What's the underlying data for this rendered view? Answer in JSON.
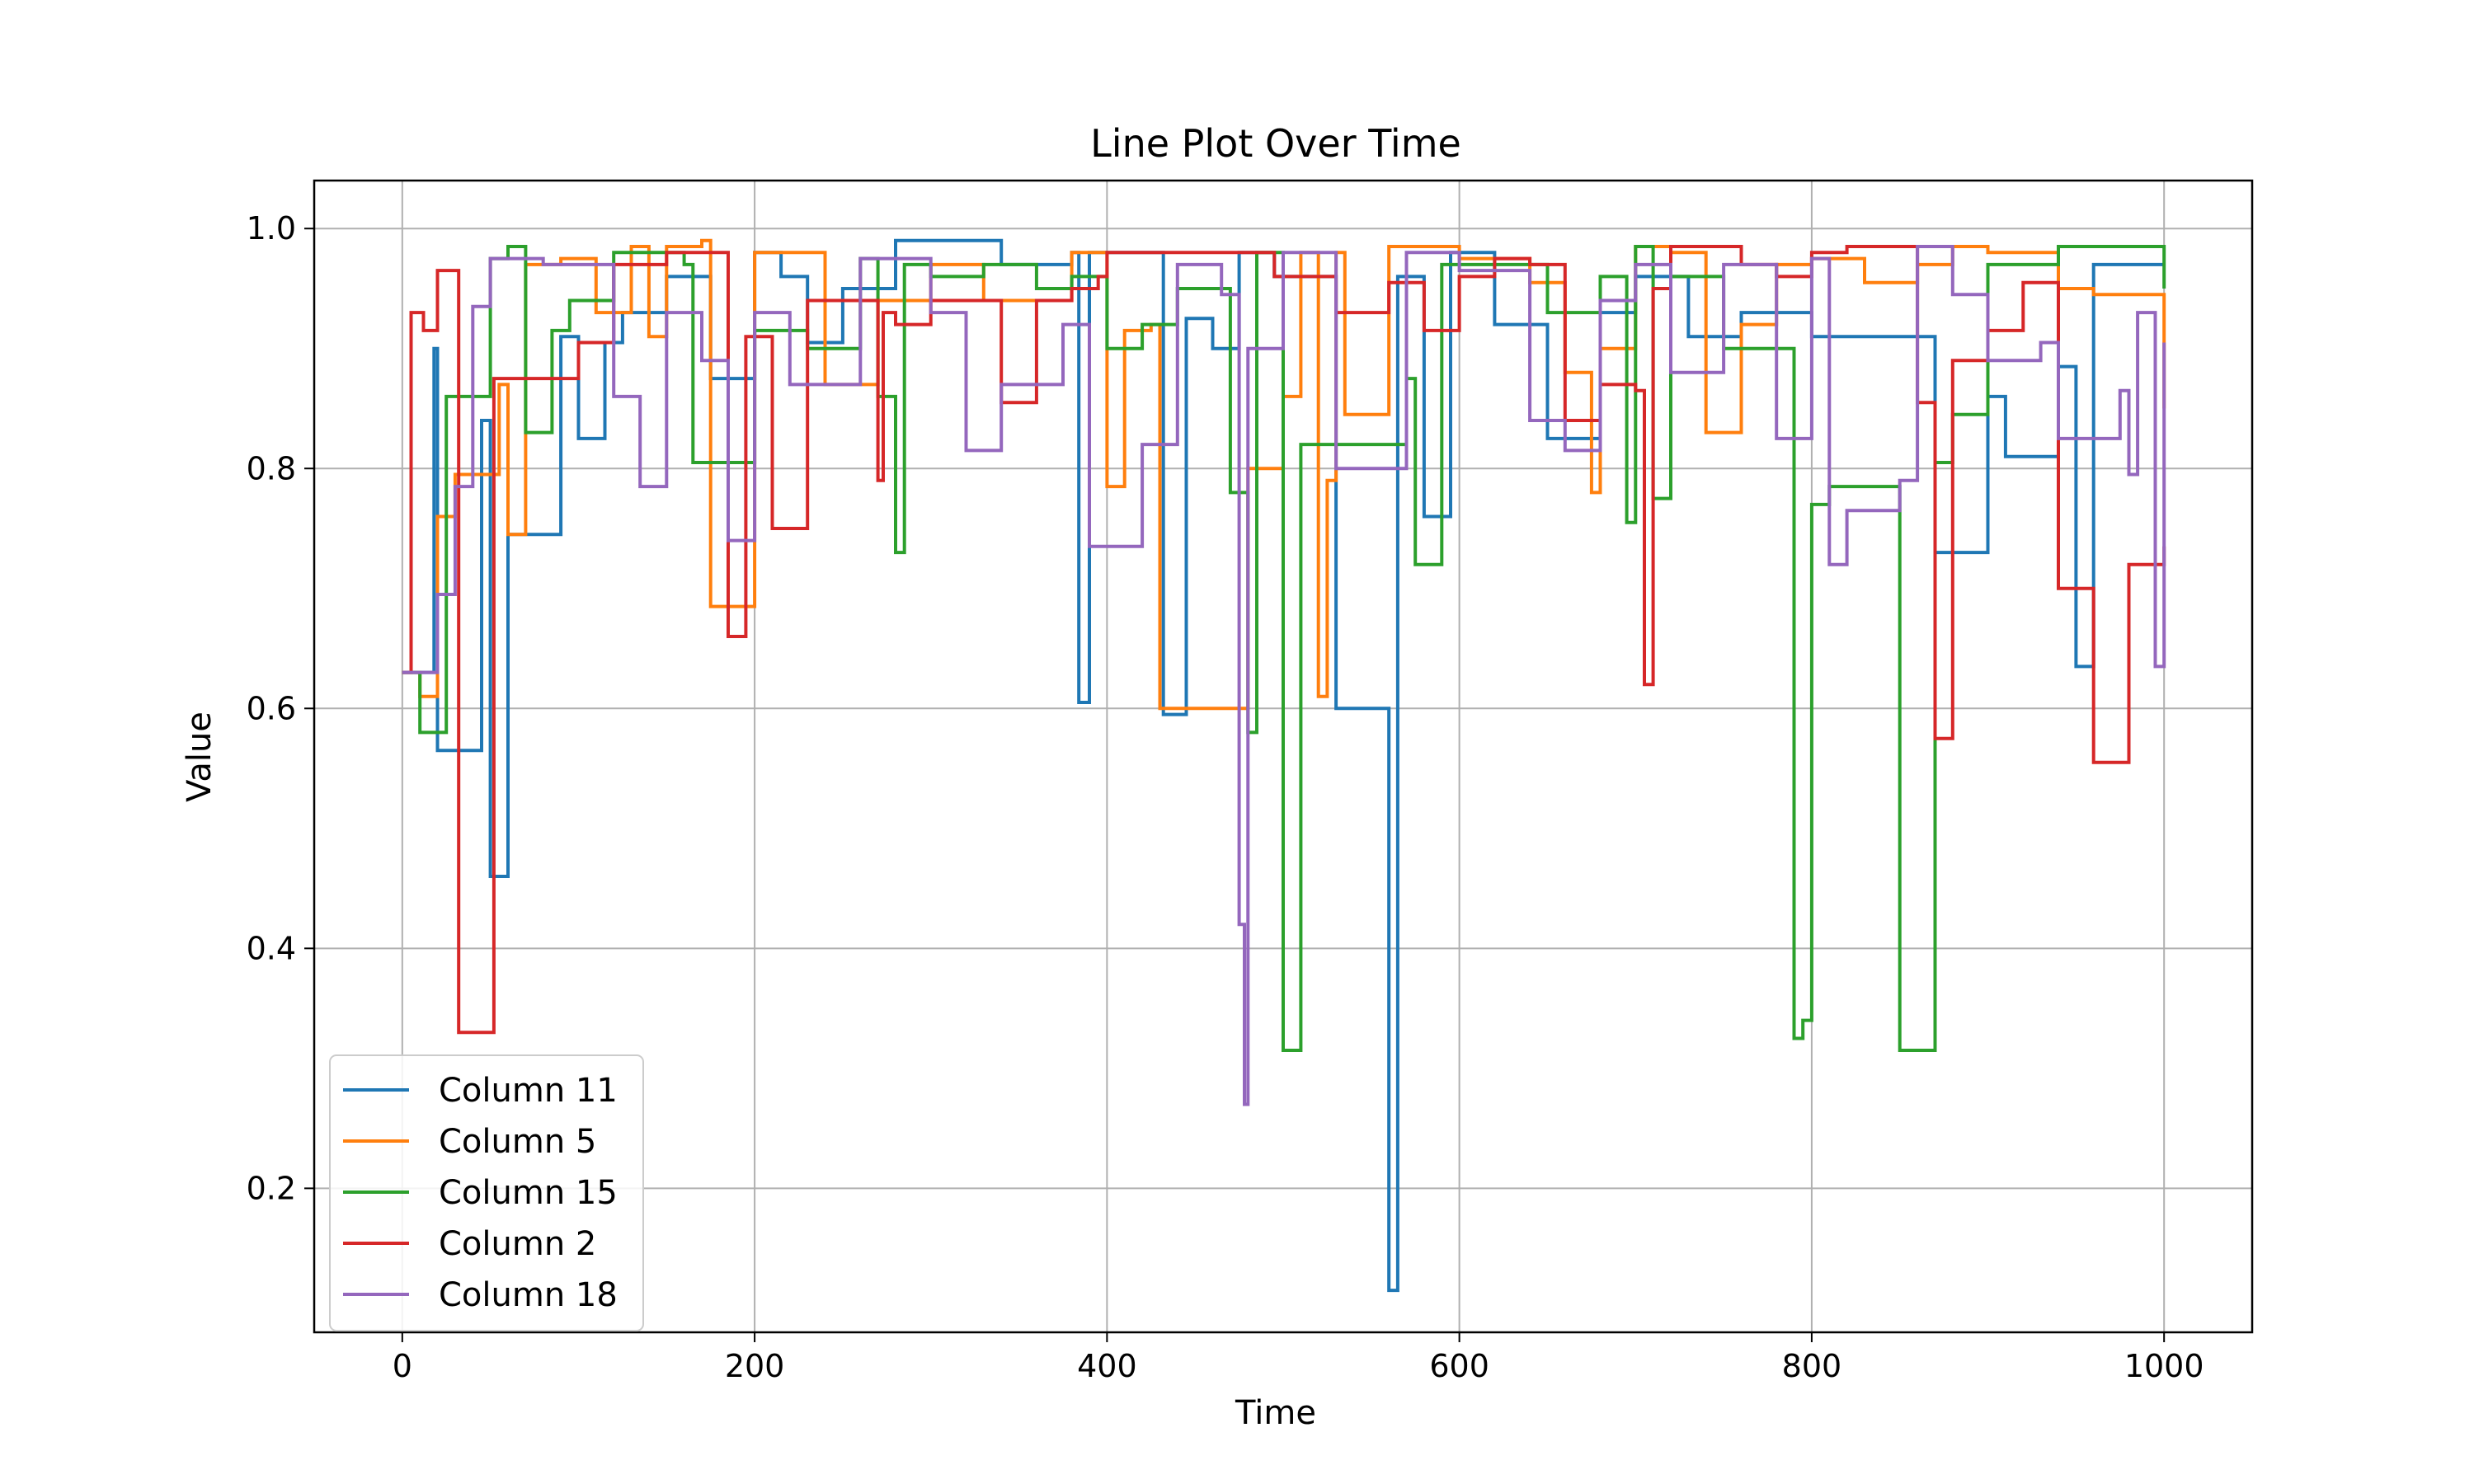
{
  "chart_data": {
    "type": "line",
    "title": "Line Plot Over Time",
    "xlabel": "Time",
    "ylabel": "Value",
    "xlim": [
      -50,
      1050
    ],
    "ylim": [
      0.08,
      1.04
    ],
    "xticks": [
      0,
      200,
      400,
      600,
      800,
      1000
    ],
    "yticks": [
      0.2,
      0.4,
      0.6,
      0.8,
      1.0
    ],
    "xtick_labels": [
      "0",
      "200",
      "400",
      "600",
      "800",
      "1000"
    ],
    "ytick_labels": [
      "0.2",
      "0.4",
      "0.6",
      "0.8",
      "1.0"
    ],
    "grid": true,
    "legend_position": "lower-left",
    "series": [
      {
        "name": "Column 11",
        "color": "#1f77b4",
        "x": [
          0,
          18,
          20,
          30,
          45,
          50,
          60,
          75,
          90,
          100,
          115,
          125,
          150,
          175,
          200,
          215,
          230,
          250,
          280,
          300,
          340,
          380,
          384,
          390,
          430,
          432,
          445,
          460,
          475,
          495,
          520,
          530,
          558,
          560,
          565,
          580,
          595,
          620,
          650,
          680,
          700,
          730,
          760,
          800,
          820,
          860,
          870,
          880,
          900,
          910,
          940,
          950,
          960,
          990,
          1000
        ],
        "y": [
          0.63,
          0.9,
          0.565,
          0.565,
          0.84,
          0.46,
          0.745,
          0.745,
          0.91,
          0.825,
          0.905,
          0.93,
          0.96,
          0.875,
          0.98,
          0.96,
          0.905,
          0.95,
          0.99,
          0.99,
          0.97,
          0.98,
          0.605,
          0.98,
          0.98,
          0.595,
          0.925,
          0.9,
          0.98,
          0.96,
          0.96,
          0.6,
          0.6,
          0.115,
          0.96,
          0.76,
          0.98,
          0.92,
          0.825,
          0.93,
          0.96,
          0.91,
          0.93,
          0.91,
          0.91,
          0.91,
          0.73,
          0.73,
          0.86,
          0.81,
          0.885,
          0.635,
          0.97,
          0.97,
          0.97
        ]
      },
      {
        "name": "Column 5",
        "color": "#ff7f0e",
        "x": [
          0,
          10,
          20,
          30,
          40,
          55,
          60,
          70,
          90,
          110,
          130,
          140,
          150,
          170,
          175,
          185,
          200,
          240,
          270,
          300,
          330,
          360,
          380,
          400,
          410,
          425,
          430,
          470,
          480,
          500,
          510,
          520,
          525,
          530,
          535,
          560,
          600,
          640,
          660,
          675,
          680,
          700,
          720,
          740,
          760,
          780,
          800,
          830,
          860,
          880,
          900,
          940,
          960,
          1000
        ],
        "y": [
          0.63,
          0.61,
          0.76,
          0.795,
          0.795,
          0.87,
          0.745,
          0.97,
          0.975,
          0.93,
          0.985,
          0.91,
          0.985,
          0.99,
          0.685,
          0.685,
          0.98,
          0.87,
          0.94,
          0.97,
          0.94,
          0.94,
          0.98,
          0.785,
          0.915,
          0.92,
          0.6,
          0.6,
          0.8,
          0.86,
          0.98,
          0.61,
          0.79,
          0.98,
          0.845,
          0.985,
          0.975,
          0.955,
          0.88,
          0.78,
          0.9,
          0.985,
          0.98,
          0.83,
          0.92,
          0.97,
          0.975,
          0.955,
          0.97,
          0.985,
          0.98,
          0.95,
          0.945,
          0.85
        ]
      },
      {
        "name": "Column 15",
        "color": "#2ca02c",
        "x": [
          0,
          10,
          25,
          35,
          50,
          60,
          70,
          85,
          95,
          120,
          160,
          165,
          200,
          230,
          260,
          270,
          280,
          285,
          300,
          330,
          360,
          380,
          400,
          420,
          440,
          470,
          480,
          485,
          500,
          510,
          520,
          570,
          575,
          590,
          650,
          680,
          695,
          700,
          710,
          720,
          750,
          790,
          795,
          800,
          810,
          820,
          850,
          868,
          870,
          880,
          900,
          940,
          960,
          1000
        ],
        "y": [
          0.63,
          0.58,
          0.86,
          0.86,
          0.975,
          0.985,
          0.83,
          0.915,
          0.94,
          0.98,
          0.97,
          0.805,
          0.915,
          0.9,
          0.975,
          0.86,
          0.73,
          0.97,
          0.96,
          0.97,
          0.95,
          0.96,
          0.9,
          0.92,
          0.95,
          0.78,
          0.58,
          0.98,
          0.315,
          0.82,
          0.82,
          0.875,
          0.72,
          0.97,
          0.93,
          0.96,
          0.755,
          0.985,
          0.775,
          0.96,
          0.9,
          0.325,
          0.34,
          0.77,
          0.785,
          0.785,
          0.315,
          0.315,
          0.805,
          0.845,
          0.97,
          0.985,
          0.985,
          0.95
        ]
      },
      {
        "name": "Column 2",
        "color": "#d62728",
        "x": [
          0,
          5,
          12,
          20,
          30,
          32,
          48,
          52,
          70,
          100,
          120,
          150,
          180,
          185,
          195,
          210,
          230,
          270,
          273,
          280,
          300,
          340,
          360,
          380,
          395,
          400,
          420,
          450,
          480,
          495,
          530,
          560,
          580,
          600,
          620,
          640,
          660,
          680,
          700,
          705,
          710,
          720,
          760,
          780,
          800,
          820,
          860,
          870,
          880,
          900,
          920,
          940,
          960,
          980,
          1000
        ],
        "y": [
          0.63,
          0.93,
          0.915,
          0.965,
          0.965,
          0.33,
          0.33,
          0.875,
          0.875,
          0.905,
          0.97,
          0.98,
          0.98,
          0.66,
          0.91,
          0.75,
          0.94,
          0.79,
          0.93,
          0.92,
          0.94,
          0.855,
          0.94,
          0.95,
          0.96,
          0.98,
          0.98,
          0.98,
          0.98,
          0.96,
          0.93,
          0.955,
          0.915,
          0.96,
          0.975,
          0.97,
          0.84,
          0.87,
          0.865,
          0.62,
          0.95,
          0.985,
          0.97,
          0.96,
          0.98,
          0.985,
          0.855,
          0.575,
          0.89,
          0.915,
          0.955,
          0.7,
          0.555,
          0.72,
          0.735
        ]
      },
      {
        "name": "Column 18",
        "color": "#9467bd",
        "x": [
          0,
          20,
          30,
          40,
          50,
          80,
          100,
          120,
          135,
          150,
          170,
          185,
          200,
          220,
          260,
          300,
          320,
          340,
          375,
          390,
          420,
          440,
          465,
          475,
          478,
          480,
          485,
          500,
          530,
          570,
          600,
          640,
          660,
          680,
          700,
          720,
          750,
          780,
          800,
          810,
          820,
          850,
          860,
          880,
          900,
          930,
          940,
          960,
          975,
          980,
          985,
          995,
          1000
        ],
        "y": [
          0.63,
          0.695,
          0.785,
          0.935,
          0.975,
          0.97,
          0.97,
          0.86,
          0.785,
          0.93,
          0.89,
          0.74,
          0.93,
          0.87,
          0.975,
          0.93,
          0.815,
          0.87,
          0.92,
          0.735,
          0.82,
          0.97,
          0.945,
          0.42,
          0.27,
          0.9,
          0.9,
          0.98,
          0.8,
          0.98,
          0.965,
          0.84,
          0.815,
          0.94,
          0.97,
          0.88,
          0.97,
          0.825,
          0.975,
          0.72,
          0.765,
          0.79,
          0.985,
          0.945,
          0.89,
          0.905,
          0.825,
          0.825,
          0.865,
          0.795,
          0.93,
          0.635,
          0.905
        ]
      }
    ]
  }
}
